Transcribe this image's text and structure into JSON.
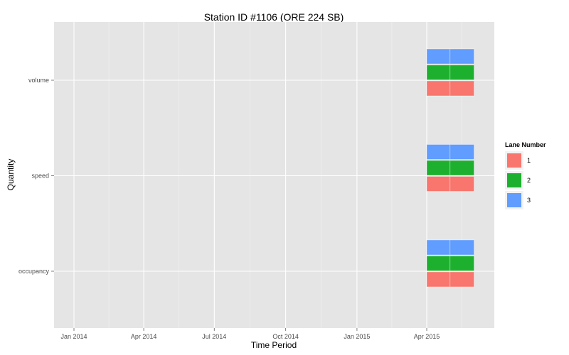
{
  "chart_data": {
    "type": "bar",
    "title": "Station ID #1106 (ORE 224 SB)",
    "xlabel": "Time Period",
    "ylabel": "Quantity",
    "x_ticks": [
      "Jan 2014",
      "Apr 2014",
      "Jul 2014",
      "Oct 2014",
      "Jan 2015",
      "Apr 2015"
    ],
    "y_categories": [
      "occupancy",
      "speed",
      "volume"
    ],
    "legend_title": "Lane Number",
    "legend_position": "right",
    "grid": true,
    "series": [
      {
        "name": "1",
        "color": "#F8766D",
        "segments": [
          [
            "2015-04-01",
            "2015-05-01"
          ],
          [
            "2015-05-01",
            "2015-06-01"
          ]
        ]
      },
      {
        "name": "2",
        "color": "#1DB02E",
        "segments": [
          [
            "2015-04-01",
            "2015-05-01"
          ],
          [
            "2015-05-01",
            "2015-06-01"
          ]
        ]
      },
      {
        "name": "3",
        "color": "#619CFF",
        "segments": [
          [
            "2015-04-01",
            "2015-05-01"
          ],
          [
            "2015-05-01",
            "2015-06-01"
          ]
        ]
      }
    ]
  }
}
